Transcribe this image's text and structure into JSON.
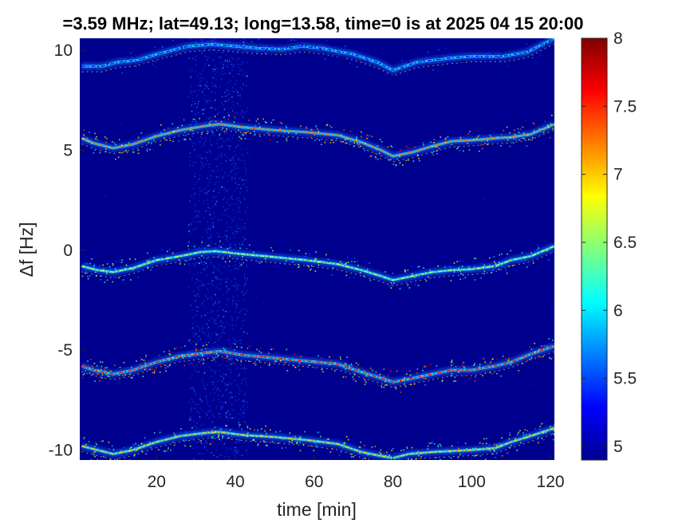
{
  "chart_data": {
    "type": "heatmap",
    "title": "=3.59 MHz;  lat=49.13; long=13.58, time=0 is at 2025 04 15 20:00",
    "xlabel": "time [min]",
    "ylabel": "Δf [Hz]",
    "xlim": [
      0.5,
      121
    ],
    "ylim": [
      -10.5,
      10.6
    ],
    "xticks": [
      20,
      40,
      60,
      80,
      100,
      120
    ],
    "yticks": [
      -10,
      -5,
      0,
      5,
      10
    ],
    "colorbar": {
      "ticks": [
        5,
        5.5,
        6,
        6.5,
        7,
        7.5,
        8
      ],
      "range": [
        4.9,
        8
      ],
      "colormap": "jet"
    },
    "background_color": "#00008f",
    "noise_band_min": [
      28,
      43
    ],
    "traces": [
      {
        "name": "",
        "points": [
          [
            1,
            9.2
          ],
          [
            6,
            9.2
          ],
          [
            10,
            9.4
          ],
          [
            15,
            9.5
          ],
          [
            20,
            9.8
          ],
          [
            28,
            10.2
          ],
          [
            34,
            10.3
          ],
          [
            40,
            10.2
          ],
          [
            46,
            10.1
          ],
          [
            52,
            10.05
          ],
          [
            57,
            10.2
          ],
          [
            62,
            10.1
          ],
          [
            70,
            9.8
          ],
          [
            76,
            9.4
          ],
          [
            80,
            9.0
          ],
          [
            86,
            9.4
          ],
          [
            94,
            9.6
          ],
          [
            100,
            9.7
          ],
          [
            108,
            9.7
          ],
          [
            114,
            9.9
          ],
          [
            121,
            10.6
          ]
        ],
        "intensity": 5.4
      },
      {
        "name": "",
        "points": [
          [
            1,
            5.6
          ],
          [
            4,
            5.35
          ],
          [
            9,
            5.1
          ],
          [
            14,
            5.3
          ],
          [
            20,
            5.7
          ],
          [
            26,
            6.0
          ],
          [
            32,
            6.2
          ],
          [
            36,
            6.3
          ],
          [
            42,
            6.15
          ],
          [
            50,
            6.0
          ],
          [
            58,
            5.9
          ],
          [
            66,
            5.75
          ],
          [
            72,
            5.4
          ],
          [
            77,
            5.0
          ],
          [
            80,
            4.7
          ],
          [
            85,
            4.9
          ],
          [
            90,
            5.2
          ],
          [
            95,
            5.45
          ],
          [
            100,
            5.5
          ],
          [
            106,
            5.6
          ],
          [
            110,
            5.65
          ],
          [
            115,
            5.8
          ],
          [
            121,
            6.3
          ]
        ],
        "intensity": 7.3
      },
      {
        "name": "",
        "points": [
          [
            1,
            -0.8
          ],
          [
            5,
            -1.0
          ],
          [
            9,
            -1.1
          ],
          [
            14,
            -0.9
          ],
          [
            20,
            -0.5
          ],
          [
            26,
            -0.3
          ],
          [
            31,
            -0.1
          ],
          [
            35,
            -0.05
          ],
          [
            42,
            -0.2
          ],
          [
            50,
            -0.35
          ],
          [
            58,
            -0.5
          ],
          [
            66,
            -0.7
          ],
          [
            72,
            -1.0
          ],
          [
            77,
            -1.3
          ],
          [
            80,
            -1.5
          ],
          [
            85,
            -1.3
          ],
          [
            90,
            -1.1
          ],
          [
            95,
            -1.0
          ],
          [
            100,
            -0.95
          ],
          [
            106,
            -0.8
          ],
          [
            110,
            -0.5
          ],
          [
            115,
            -0.3
          ],
          [
            121,
            0.2
          ]
        ],
        "intensity": 6.6
      },
      {
        "name": "",
        "points": [
          [
            1,
            -5.8
          ],
          [
            4,
            -6.0
          ],
          [
            9,
            -6.2
          ],
          [
            14,
            -6.0
          ],
          [
            20,
            -5.6
          ],
          [
            26,
            -5.3
          ],
          [
            32,
            -5.15
          ],
          [
            36,
            -5.05
          ],
          [
            42,
            -5.25
          ],
          [
            50,
            -5.4
          ],
          [
            58,
            -5.55
          ],
          [
            66,
            -5.7
          ],
          [
            72,
            -6.1
          ],
          [
            77,
            -6.4
          ],
          [
            80,
            -6.6
          ],
          [
            84,
            -6.45
          ],
          [
            90,
            -6.2
          ],
          [
            95,
            -6.0
          ],
          [
            100,
            -6.0
          ],
          [
            106,
            -5.8
          ],
          [
            110,
            -5.6
          ],
          [
            115,
            -5.2
          ],
          [
            121,
            -4.8
          ]
        ],
        "intensity": 7.6
      },
      {
        "name": "",
        "points": [
          [
            1,
            -9.8
          ],
          [
            5,
            -10.0
          ],
          [
            9,
            -10.2
          ],
          [
            14,
            -10.0
          ],
          [
            20,
            -9.6
          ],
          [
            26,
            -9.3
          ],
          [
            32,
            -9.15
          ],
          [
            36,
            -9.1
          ],
          [
            42,
            -9.25
          ],
          [
            50,
            -9.35
          ],
          [
            58,
            -9.5
          ],
          [
            66,
            -9.7
          ],
          [
            72,
            -10.1
          ],
          [
            77,
            -10.3
          ],
          [
            80,
            -10.4
          ],
          [
            84,
            -10.2
          ],
          [
            90,
            -10.1
          ],
          [
            95,
            -10.05
          ],
          [
            100,
            -10.0
          ],
          [
            106,
            -9.9
          ],
          [
            110,
            -9.6
          ],
          [
            115,
            -9.3
          ],
          [
            121,
            -8.9
          ]
        ],
        "intensity": 7.0
      }
    ]
  }
}
